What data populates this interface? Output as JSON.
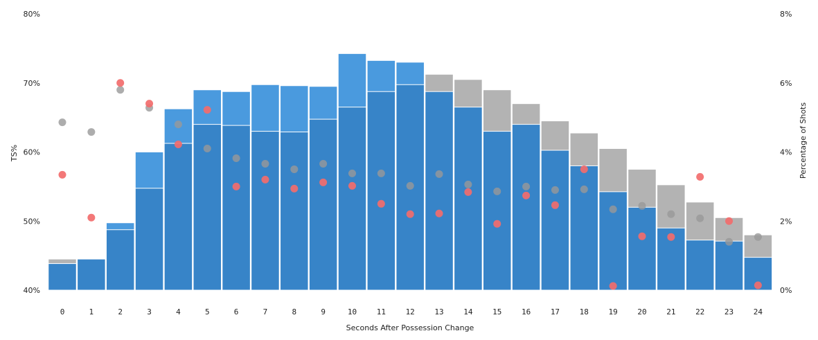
{
  "chart_data": {
    "type": "bar",
    "xlabel": "Seconds After Possession Change",
    "ylabel_left": "TS%",
    "ylabel_right": "Percentage of Shots",
    "ylim_left": [
      40,
      80
    ],
    "ylim_right": [
      0,
      8
    ],
    "left_ticks": [
      "40%",
      "50%",
      "60%",
      "70%",
      "80%"
    ],
    "right_ticks": [
      "0%",
      "2%",
      "4%",
      "6%",
      "8%"
    ],
    "categories": [
      "0",
      "1",
      "2",
      "3",
      "4",
      "5",
      "6",
      "7",
      "8",
      "9",
      "10",
      "11",
      "12",
      "13",
      "14",
      "15",
      "16",
      "17",
      "18",
      "19",
      "20",
      "21",
      "22",
      "23",
      "24"
    ],
    "series": [
      {
        "name": "Gray bars (% of shots, all)",
        "axis": "right",
        "color": "#b3b3b3",
        "values": [
          0.9,
          0.9,
          1.95,
          4.0,
          5.25,
          5.8,
          5.75,
          5.95,
          5.92,
          5.9,
          6.85,
          6.65,
          6.6,
          6.25,
          6.1,
          5.8,
          5.4,
          4.9,
          4.55,
          4.1,
          3.5,
          3.05,
          2.55,
          2.1,
          1.6
        ]
      },
      {
        "name": "Light blue bars (% of shots)",
        "axis": "right",
        "color": "#4a9ade",
        "values": [
          0.77,
          0.9,
          1.95,
          4.0,
          5.25,
          5.8,
          5.75,
          5.95,
          5.92,
          5.9,
          6.85,
          6.65,
          6.6,
          0,
          0,
          0,
          0,
          0,
          0,
          0,
          0,
          0,
          0,
          0,
          0
        ]
      },
      {
        "name": "Dark blue bars (% of shots)",
        "axis": "right",
        "color": "#3784c8",
        "values": [
          0.77,
          0.9,
          1.75,
          2.95,
          4.25,
          4.8,
          4.77,
          4.6,
          4.58,
          4.95,
          5.3,
          5.75,
          5.95,
          5.75,
          5.3,
          4.6,
          4.8,
          4.05,
          3.6,
          2.85,
          2.4,
          1.8,
          1.45,
          1.42,
          0.95
        ]
      },
      {
        "name": "Gray dots (TS%)",
        "axis": "left",
        "color": "#999999",
        "values": [
          64.3,
          62.9,
          69.0,
          66.4,
          64.0,
          60.5,
          59.1,
          58.3,
          57.5,
          58.3,
          56.9,
          56.9,
          55.1,
          56.8,
          55.3,
          54.3,
          55.0,
          54.5,
          54.6,
          51.7,
          52.2,
          51.0,
          50.4,
          47.0,
          47.7
        ]
      },
      {
        "name": "Red dots (TS%)",
        "axis": "left",
        "color": "#f26d6d",
        "values": [
          56.7,
          50.5,
          70.0,
          67.0,
          61.1,
          66.1,
          55.0,
          56.0,
          54.7,
          55.6,
          55.1,
          52.5,
          51.0,
          51.1,
          54.2,
          49.6,
          53.7,
          52.3,
          57.5,
          40.6,
          47.8,
          47.7,
          56.4,
          50.0,
          40.7
        ]
      }
    ]
  }
}
